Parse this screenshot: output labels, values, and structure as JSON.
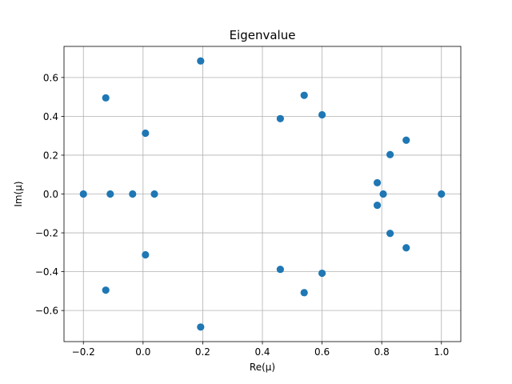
{
  "chart_data": {
    "type": "scatter",
    "title": "Eigenvalue",
    "xlabel": "Re(μ)",
    "ylabel": "Im(μ)",
    "xlim": [
      -0.265,
      1.065
    ],
    "ylim": [
      -0.76,
      0.76
    ],
    "xticks": [
      -0.2,
      0.0,
      0.2,
      0.4,
      0.6,
      0.8,
      1.0
    ],
    "xtick_labels": [
      "−0.2",
      "0.0",
      "0.2",
      "0.4",
      "0.6",
      "0.8",
      "1.0"
    ],
    "yticks": [
      -0.6,
      -0.4,
      -0.2,
      0.0,
      0.2,
      0.4,
      0.6
    ],
    "ytick_labels": [
      "−0.6",
      "−0.4",
      "−0.2",
      "0.0",
      "0.2",
      "0.4",
      "0.6"
    ],
    "grid": true,
    "marker_color": "#1f77b4",
    "series": [
      {
        "points": [
          [
            -0.2,
            0.0
          ],
          [
            -0.11,
            0.0
          ],
          [
            -0.035,
            0.0
          ],
          [
            0.038,
            0.0
          ],
          [
            -0.125,
            0.495
          ],
          [
            -0.125,
            -0.495
          ],
          [
            0.008,
            0.313
          ],
          [
            0.008,
            -0.313
          ],
          [
            0.193,
            0.685
          ],
          [
            0.193,
            -0.685
          ],
          [
            0.46,
            0.388
          ],
          [
            0.46,
            -0.388
          ],
          [
            0.54,
            0.508
          ],
          [
            0.54,
            -0.508
          ],
          [
            0.6,
            0.408
          ],
          [
            0.6,
            -0.408
          ],
          [
            0.785,
            0.058
          ],
          [
            0.785,
            -0.058
          ],
          [
            0.805,
            0.0
          ],
          [
            0.828,
            0.203
          ],
          [
            0.828,
            -0.203
          ],
          [
            0.882,
            0.277
          ],
          [
            0.882,
            -0.277
          ],
          [
            1.0,
            0.0
          ]
        ]
      }
    ]
  }
}
